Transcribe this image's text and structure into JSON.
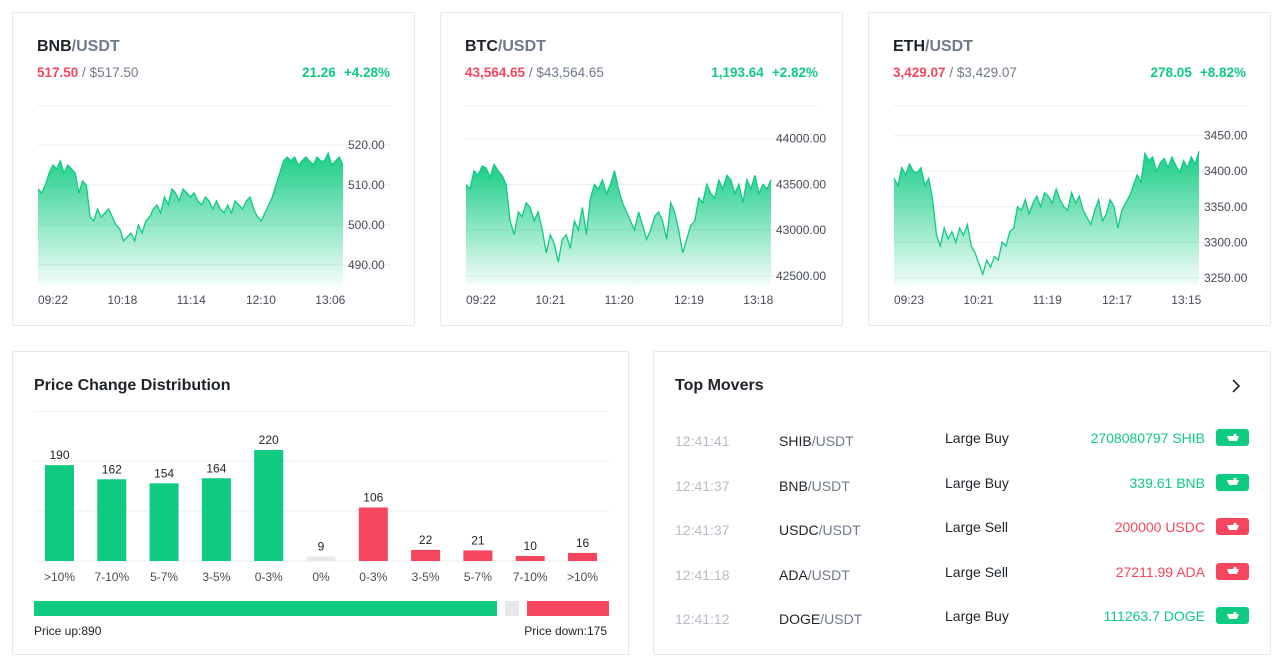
{
  "tickers": [
    {
      "id": "bnb",
      "base": "BNB",
      "quote": "/USDT",
      "last": "517.50",
      "usd": "$517.50",
      "change": "21.26",
      "change_pct": "+4.28%",
      "chart_data": {
        "type": "area",
        "title": "BNB/USDT",
        "color": "#0ecb81",
        "ylim": [
          485,
          525
        ],
        "yticks": [
          490,
          500,
          510,
          520
        ],
        "ytick_labels": [
          "490.00",
          "500.00",
          "510.00",
          "520.00"
        ],
        "xticks": [
          "09:22",
          "10:18",
          "11:14",
          "12:10",
          "13:06"
        ],
        "values": [
          509,
          508,
          510,
          513,
          515,
          514,
          516,
          513,
          515,
          514,
          513,
          508,
          511,
          510,
          502,
          501,
          504,
          502,
          503,
          504,
          502,
          500,
          499,
          496,
          497,
          498,
          496,
          500,
          498,
          501,
          502,
          504,
          505,
          503,
          507,
          505,
          509,
          508,
          506,
          509,
          508,
          507,
          508,
          506,
          505,
          507,
          506,
          504,
          506,
          504,
          503,
          505,
          503,
          506,
          505,
          504,
          506,
          507,
          504,
          502,
          501,
          503,
          505,
          507,
          510,
          513,
          516,
          517,
          516,
          517,
          515,
          516,
          517,
          516,
          515,
          517,
          516,
          516,
          518,
          515,
          516,
          517,
          515
        ]
      }
    },
    {
      "id": "btc",
      "base": "BTC",
      "quote": "/USDT",
      "last": "43,564.65",
      "usd": "$43,564.65",
      "change": "1,193.64",
      "change_pct": "+2.82%",
      "chart_data": {
        "type": "area",
        "title": "BTC/USDT",
        "color": "#0ecb81",
        "ylim": [
          42400,
          44150
        ],
        "yticks": [
          42500,
          43000,
          43500,
          44000
        ],
        "ytick_labels": [
          "42500.00",
          "43000.00",
          "43500.00",
          "44000.00"
        ],
        "xticks": [
          "09:22",
          "10:21",
          "11:20",
          "12:19",
          "13:18"
        ],
        "values": [
          43500,
          43450,
          43650,
          43600,
          43700,
          43680,
          43580,
          43720,
          43650,
          43600,
          43500,
          43100,
          42950,
          43200,
          43150,
          43300,
          43250,
          43100,
          43200,
          43000,
          42750,
          42950,
          42850,
          42650,
          42900,
          42950,
          42800,
          43100,
          43000,
          43250,
          42950,
          43350,
          43500,
          43450,
          43550,
          43400,
          43500,
          43650,
          43450,
          43300,
          43200,
          43100,
          43000,
          43200,
          43050,
          42900,
          43000,
          43150,
          43200,
          43100,
          42900,
          43300,
          43200,
          43000,
          42750,
          42900,
          43050,
          43100,
          43350,
          43300,
          43500,
          43400,
          43350,
          43550,
          43450,
          43600,
          43550,
          43400,
          43500,
          43300,
          43550,
          43450,
          43600,
          43400,
          43500,
          43450,
          43550
        ]
      }
    },
    {
      "id": "eth",
      "base": "ETH",
      "quote": "/USDT",
      "last": "3,429.07",
      "usd": "$3,429.07",
      "change": "278.05",
      "change_pct": "+8.82%",
      "chart_data": {
        "type": "area",
        "title": "ETH/USDT",
        "color": "#0ecb81",
        "ylim": [
          3240,
          3465
        ],
        "yticks": [
          3250,
          3300,
          3350,
          3400,
          3450
        ],
        "ytick_labels": [
          "3250.00",
          "3300.00",
          "3350.00",
          "3400.00",
          "3450.00"
        ],
        "xticks": [
          "09:23",
          "10:21",
          "11:19",
          "12:17",
          "13:15"
        ],
        "values": [
          3390,
          3380,
          3405,
          3395,
          3410,
          3400,
          3398,
          3405,
          3380,
          3390,
          3360,
          3310,
          3295,
          3320,
          3305,
          3315,
          3300,
          3320,
          3310,
          3325,
          3295,
          3285,
          3270,
          3255,
          3275,
          3265,
          3280,
          3275,
          3300,
          3295,
          3315,
          3320,
          3350,
          3345,
          3360,
          3340,
          3355,
          3365,
          3350,
          3370,
          3365,
          3355,
          3375,
          3360,
          3350,
          3345,
          3370,
          3355,
          3365,
          3345,
          3335,
          3325,
          3345,
          3360,
          3330,
          3340,
          3360,
          3350,
          3320,
          3345,
          3355,
          3365,
          3380,
          3395,
          3385,
          3425,
          3415,
          3420,
          3400,
          3412,
          3418,
          3405,
          3420,
          3408,
          3398,
          3415,
          3405,
          3420,
          3410,
          3428
        ]
      }
    }
  ],
  "distribution": {
    "title": "Price Change Distribution",
    "chart_data": {
      "type": "bar",
      "categories": [
        ">10%",
        "7-10%",
        "5-7%",
        "3-5%",
        "0-3%",
        "0%",
        "0-3%",
        "3-5%",
        "5-7%",
        "7-10%",
        ">10%"
      ],
      "values": [
        190,
        162,
        154,
        164,
        220,
        9,
        106,
        22,
        21,
        10,
        16
      ],
      "value_labels": [
        "190",
        "162",
        "154",
        "164",
        "220",
        "9",
        "106",
        "22",
        "21",
        "10",
        "16"
      ],
      "directions": [
        "up",
        "up",
        "up",
        "up",
        "up",
        "flat",
        "down",
        "down",
        "down",
        "down",
        "down"
      ],
      "colors": {
        "up": "#0ecb81",
        "flat": "#e6e8ea",
        "down": "#f6465d"
      },
      "ylim": [
        0,
        250
      ]
    },
    "ratio": {
      "up": 890,
      "flat": 9,
      "down": 175
    },
    "price_up_label": "Price up:890",
    "price_down_label": "Price down:175"
  },
  "movers": {
    "title": "Top Movers",
    "rows": [
      {
        "time": "12:41:41",
        "base": "SHIB",
        "quote": "/USDT",
        "type": "Large Buy",
        "amount": "2708080797 SHIB",
        "side": "buy"
      },
      {
        "time": "12:41:37",
        "base": "BNB",
        "quote": "/USDT",
        "type": "Large Buy",
        "amount": "339.61 BNB",
        "side": "buy"
      },
      {
        "time": "12:41:37",
        "base": "USDC",
        "quote": "/USDT",
        "type": "Large Sell",
        "amount": "200000 USDC",
        "side": "sell"
      },
      {
        "time": "12:41:18",
        "base": "ADA",
        "quote": "/USDT",
        "type": "Large Sell",
        "amount": "27211.99 ADA",
        "side": "sell"
      },
      {
        "time": "12:41:12",
        "base": "DOGE",
        "quote": "/USDT",
        "type": "Large Buy",
        "amount": "111263.7 DOGE",
        "side": "buy"
      }
    ]
  }
}
